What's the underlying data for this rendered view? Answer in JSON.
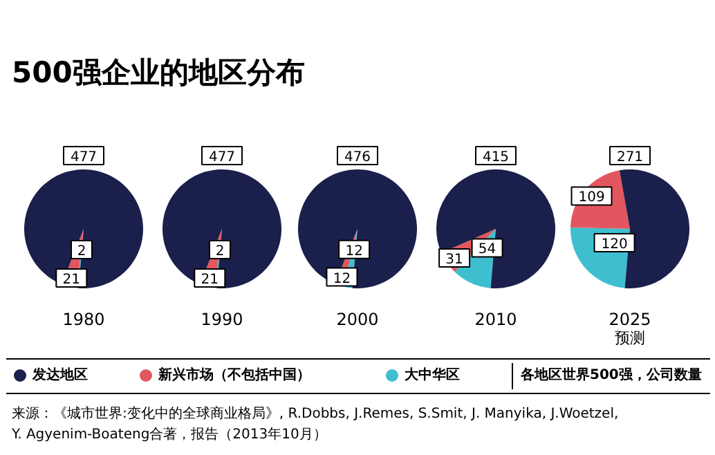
{
  "chart_data": [
    {
      "type": "pie",
      "title": "500强企业的地区分布",
      "subtitle": "1980",
      "categories": [
        "发达地区",
        "新兴市场（不包括中国）",
        "大中华区"
      ],
      "values": [
        477,
        21,
        2
      ],
      "colors": [
        "#1b1f4b",
        "#e2575f",
        "#3dbfd0"
      ],
      "data_labels": true,
      "legend": "bottom",
      "annotations": [
        "各地区世界500强，公司数量",
        "来源：《城市世界:变化中的全球商业格局》, R.Dobbs, J.Remes, S.Smit, J. Manyika, J.Woetzel, Y. Agyenim-Boateng合著，报告（2013年10月）"
      ]
    },
    {
      "type": "pie",
      "subtitle": "1990",
      "categories": [
        null,
        null,
        null
      ],
      "values": [
        477,
        21,
        2
      ],
      "colors": [
        "#1b1f4b",
        "#e2575f",
        "#3dbfd0"
      ],
      "data_labels": true
    },
    {
      "type": "pie",
      "subtitle": "2000",
      "categories": [
        null,
        null,
        null
      ],
      "values": [
        476,
        12,
        12
      ],
      "colors": [
        "#1b1f4b",
        "#e2575f",
        "#3dbfd0"
      ],
      "data_labels": true
    },
    {
      "type": "pie",
      "subtitle": "2010",
      "categories": [
        null,
        null,
        null
      ],
      "values": [
        415,
        31,
        54
      ],
      "colors": [
        "#1b1f4b",
        "#e2575f",
        "#3dbfd0"
      ],
      "data_labels": true
    },
    {
      "type": "pie",
      "subtitle": "2025",
      "xlabel": "预测",
      "categories": [
        null,
        null,
        null
      ],
      "values": [
        271,
        109,
        120
      ],
      "colors": [
        "#1b1f4b",
        "#e2575f",
        "#3dbfd0"
      ],
      "data_labels": true
    }
  ]
}
